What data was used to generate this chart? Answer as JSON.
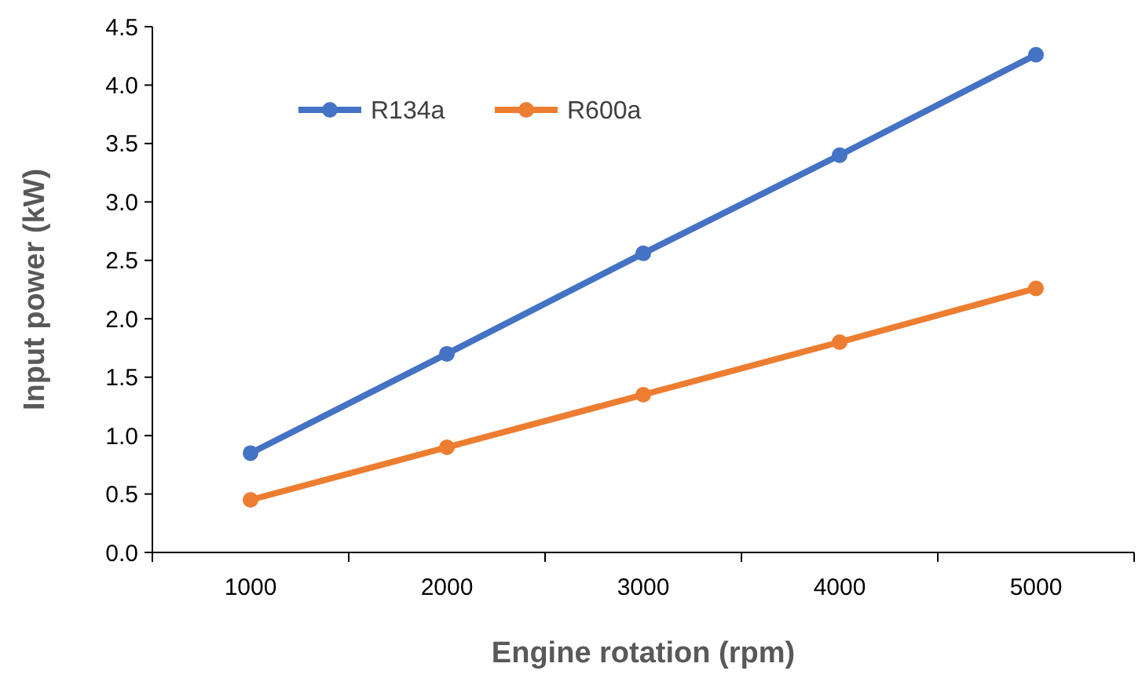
{
  "chart_data": {
    "type": "line",
    "xlabel": "Engine rotation (rpm)",
    "ylabel": "Input power (kW)",
    "categories": [
      "1000",
      "2000",
      "3000",
      "4000",
      "5000"
    ],
    "series": [
      {
        "name": "R134a",
        "color": "#4472c4",
        "values": [
          0.85,
          1.7,
          2.56,
          3.4,
          4.26
        ]
      },
      {
        "name": "R600a",
        "color": "#ed7d31",
        "values": [
          0.45,
          0.9,
          1.35,
          1.8,
          2.26
        ]
      }
    ],
    "ylim": [
      0,
      4.5
    ],
    "yticks": [
      {
        "value": 0,
        "label": "0.0"
      },
      {
        "value": 0.5,
        "label": "0.5"
      },
      {
        "value": 1,
        "label": "1.0"
      },
      {
        "value": 1.5,
        "label": "1.5"
      },
      {
        "value": 2,
        "label": "2.0"
      },
      {
        "value": 2.5,
        "label": "2.5"
      },
      {
        "value": 3,
        "label": "3.0"
      },
      {
        "value": 3.5,
        "label": "3.5"
      },
      {
        "value": 4,
        "label": "4.0"
      },
      {
        "value": 4.5,
        "label": "4.5"
      }
    ],
    "grid": false,
    "legend": "top left",
    "marker": "circle",
    "line_style": "solid"
  }
}
